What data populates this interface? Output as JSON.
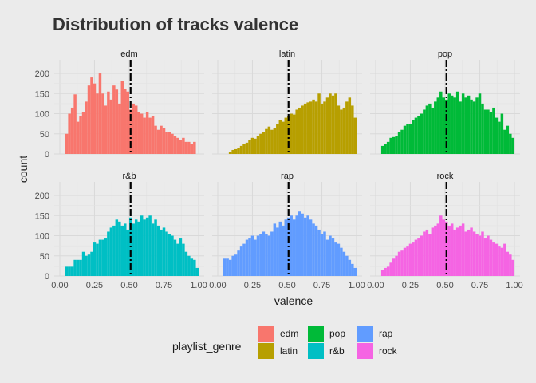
{
  "chart_data": {
    "type": "histogram",
    "title": "Distribution of tracks valence",
    "xlabel": "valence",
    "ylabel": "count",
    "xlim": [
      0,
      1
    ],
    "ylim": [
      0,
      210
    ],
    "x_ticks": [
      "0.00",
      "0.25",
      "0.50",
      "0.75",
      "1.00"
    ],
    "y_ticks": [
      "0",
      "50",
      "100",
      "150",
      "200"
    ],
    "bins": 50,
    "bin_width": 0.02,
    "bin_start": 0.01,
    "grid": true,
    "legend_title": "playlist_genre",
    "legend_position": "bottom",
    "reference_line_x": 0.51,
    "panels": [
      {
        "name": "edm",
        "color": "#F8766D",
        "median": 0.51,
        "values": [
          0,
          0,
          50,
          100,
          115,
          148,
          80,
          95,
          105,
          130,
          170,
          190,
          175,
          150,
          200,
          150,
          120,
          155,
          135,
          170,
          160,
          125,
          182,
          162,
          155,
          110,
          125,
          120,
          105,
          100,
          90,
          105,
          90,
          95,
          70,
          60,
          70,
          65,
          55,
          55,
          50,
          45,
          40,
          35,
          40,
          30,
          30,
          25,
          30,
          0
        ]
      },
      {
        "name": "latin",
        "color": "#B79F00",
        "median": 0.51,
        "values": [
          0,
          0,
          0,
          0,
          5,
          10,
          12,
          15,
          20,
          25,
          28,
          35,
          40,
          38,
          45,
          50,
          55,
          62,
          68,
          60,
          65,
          75,
          85,
          80,
          90,
          95,
          100,
          98,
          110,
          115,
          120,
          125,
          128,
          130,
          135,
          130,
          150,
          125,
          130,
          140,
          150,
          145,
          150,
          120,
          110,
          115,
          130,
          140,
          120,
          90
        ]
      },
      {
        "name": "pop",
        "color": "#00BA38",
        "median": 0.51,
        "values": [
          0,
          0,
          20,
          25,
          30,
          40,
          42,
          45,
          55,
          60,
          70,
          75,
          75,
          85,
          90,
          95,
          100,
          110,
          120,
          125,
          115,
          130,
          140,
          155,
          140,
          135,
          150,
          145,
          140,
          155,
          130,
          150,
          140,
          145,
          135,
          130,
          140,
          150,
          125,
          110,
          110,
          105,
          115,
          90,
          80,
          100,
          60,
          70,
          50,
          40
        ]
      },
      {
        "name": "r&b",
        "color": "#00BFC4",
        "median": 0.51,
        "values": [
          0,
          0,
          25,
          25,
          25,
          40,
          40,
          40,
          60,
          50,
          55,
          60,
          85,
          80,
          90,
          90,
          95,
          110,
          120,
          125,
          140,
          135,
          125,
          130,
          115,
          145,
          130,
          140,
          135,
          150,
          140,
          145,
          150,
          130,
          140,
          125,
          115,
          120,
          110,
          105,
          100,
          90,
          80,
          95,
          80,
          60,
          50,
          45,
          40,
          20
        ]
      },
      {
        "name": "rap",
        "color": "#619CFF",
        "median": 0.51,
        "values": [
          0,
          0,
          45,
          45,
          40,
          50,
          55,
          65,
          75,
          80,
          90,
          95,
          100,
          90,
          100,
          105,
          110,
          105,
          100,
          110,
          130,
          120,
          135,
          125,
          140,
          145,
          150,
          140,
          150,
          160,
          155,
          145,
          150,
          140,
          130,
          125,
          115,
          105,
          110,
          90,
          100,
          95,
          85,
          80,
          70,
          60,
          50,
          40,
          30,
          20
        ]
      },
      {
        "name": "rock",
        "color": "#F564E3",
        "median": 0.51,
        "values": [
          0,
          0,
          15,
          20,
          25,
          35,
          45,
          50,
          60,
          65,
          70,
          75,
          80,
          85,
          90,
          95,
          100,
          110,
          115,
          105,
          120,
          125,
          130,
          150,
          140,
          135,
          125,
          130,
          115,
          120,
          125,
          130,
          110,
          115,
          120,
          110,
          105,
          100,
          110,
          95,
          100,
          90,
          85,
          80,
          75,
          70,
          80,
          60,
          55,
          40
        ]
      }
    ],
    "legend": [
      {
        "label": "edm",
        "color": "#F8766D"
      },
      {
        "label": "latin",
        "color": "#B79F00"
      },
      {
        "label": "pop",
        "color": "#00BA38"
      },
      {
        "label": "r&b",
        "color": "#00BFC4"
      },
      {
        "label": "rap",
        "color": "#619CFF"
      },
      {
        "label": "rock",
        "color": "#F564E3"
      }
    ]
  }
}
